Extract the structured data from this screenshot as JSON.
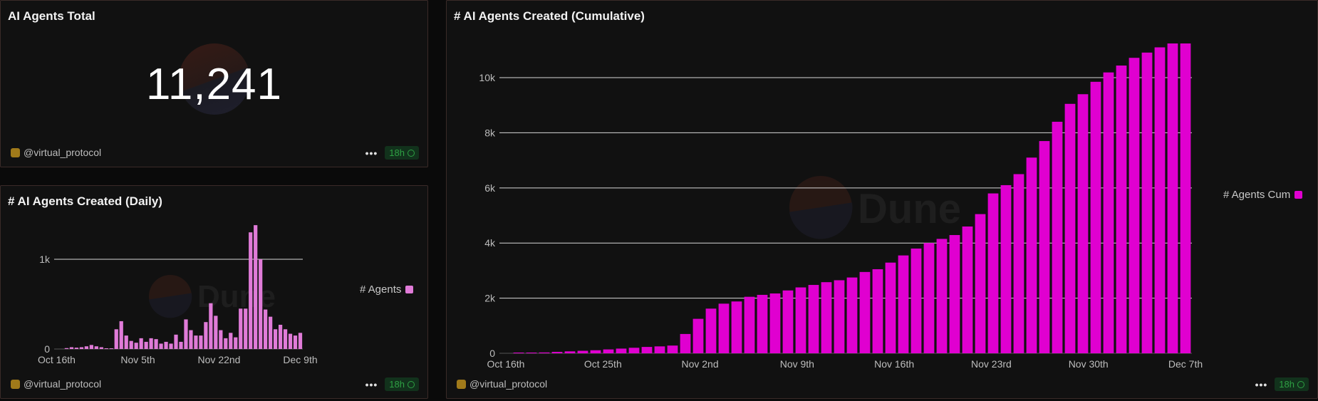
{
  "panels": {
    "total": {
      "title": "AI Agents Total",
      "value": "11,241",
      "owner": "@virtual_protocol",
      "refresh": "18h"
    },
    "daily": {
      "title": "# AI Agents Created (Daily)",
      "owner": "@virtual_protocol",
      "refresh": "18h",
      "legend": "# Agents"
    },
    "cumulative": {
      "title": "# AI Agents Created (Cumulative)",
      "owner": "@virtual_protocol",
      "refresh": "18h",
      "legend": "# Agents Cum"
    }
  },
  "watermark": "Dune",
  "menu_dots": "•••",
  "chart_data": [
    {
      "type": "bar",
      "title": "# AI Agents Created (Daily)",
      "series": [
        {
          "name": "# Agents",
          "color": "#e07bd8",
          "values": [
            0,
            0,
            10,
            20,
            15,
            20,
            30,
            45,
            30,
            20,
            5,
            5,
            220,
            310,
            150,
            90,
            70,
            120,
            80,
            120,
            110,
            60,
            80,
            60,
            160,
            80,
            330,
            210,
            150,
            150,
            300,
            510,
            370,
            210,
            120,
            180,
            130,
            450,
            450,
            1300,
            1380,
            1000,
            440,
            360,
            220,
            270,
            220,
            170,
            150,
            180
          ]
        }
      ],
      "x_ticks": [
        "Oct 16th",
        "Nov 5th",
        "Nov 22nd",
        "Dec 9th"
      ],
      "y_ticks": [
        "0",
        "1k"
      ],
      "ylim": [
        0,
        1500
      ],
      "grid": true
    },
    {
      "type": "bar",
      "title": "# AI Agents Created (Cumulative)",
      "series": [
        {
          "name": "# Agents Cum",
          "color": "#e000d0",
          "values": [
            0,
            10,
            20,
            30,
            50,
            70,
            90,
            110,
            140,
            170,
            200,
            230,
            250,
            280,
            700,
            1250,
            1620,
            1800,
            1880,
            2050,
            2120,
            2170,
            2280,
            2390,
            2480,
            2580,
            2650,
            2750,
            2950,
            3050,
            3290,
            3550,
            3800,
            4000,
            4150,
            4290,
            4600,
            5050,
            5800,
            6100,
            6500,
            7100,
            7700,
            8400,
            9050,
            9400,
            9850,
            10190,
            10440,
            10720,
            10910,
            11100,
            11241,
            11241
          ]
        }
      ],
      "x_ticks": [
        "Oct 16th",
        "Oct 25th",
        "Nov 2nd",
        "Nov 9th",
        "Nov 16th",
        "Nov 23rd",
        "Nov 30th",
        "Dec 7th"
      ],
      "y_ticks": [
        "0",
        "2k",
        "4k",
        "6k",
        "8k",
        "10k"
      ],
      "ylim": [
        0,
        11500
      ],
      "grid": true
    }
  ]
}
